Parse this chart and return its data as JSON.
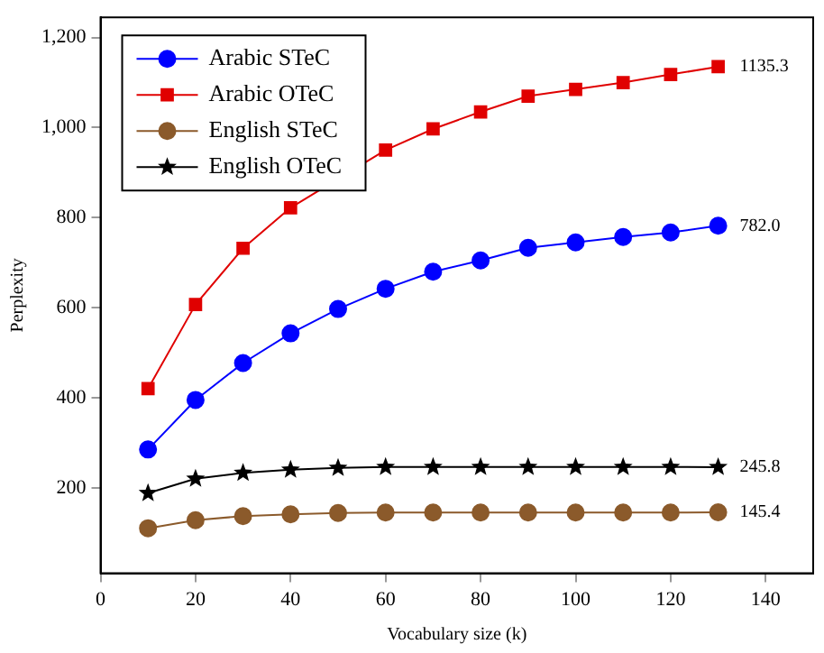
{
  "chart_data": {
    "type": "line",
    "xlabel": "Vocabulary size (k)",
    "ylabel": "Perplexity",
    "x": [
      10,
      20,
      30,
      40,
      50,
      60,
      70,
      80,
      90,
      100,
      110,
      120,
      130
    ],
    "series": [
      {
        "name": "Arabic STeC",
        "color": "#0000ff",
        "marker": "circle",
        "values": [
          285,
          395,
          477,
          543,
          597,
          642,
          680,
          705,
          733,
          745,
          757,
          767,
          782.0
        ],
        "value_labels": [
          null,
          null,
          null,
          null,
          null,
          null,
          null,
          null,
          null,
          null,
          null,
          null,
          "782.0"
        ]
      },
      {
        "name": "Arabic OTeC",
        "color": "#e00000",
        "marker": "square",
        "values": [
          420,
          607,
          732,
          822,
          null,
          950,
          997,
          1035,
          1070,
          1085,
          1100,
          1118,
          1135.3
        ],
        "value_labels": [
          null,
          null,
          null,
          null,
          null,
          null,
          null,
          null,
          null,
          null,
          null,
          null,
          "1135.3"
        ]
      },
      {
        "name": "English STeC",
        "color": "#8b5a2b",
        "marker": "circle",
        "values": [
          110,
          128,
          137,
          141,
          144,
          145,
          145,
          145,
          145,
          145,
          145,
          145,
          145.4
        ],
        "value_labels": [
          null,
          null,
          null,
          null,
          null,
          null,
          null,
          null,
          null,
          null,
          null,
          null,
          "145.4"
        ]
      },
      {
        "name": "English OTeC",
        "color": "#000000",
        "marker": "star",
        "values": [
          188,
          220,
          233,
          240,
          244,
          246,
          246,
          246,
          246,
          246,
          246,
          246,
          245.8
        ],
        "value_labels": [
          null,
          null,
          null,
          null,
          null,
          null,
          null,
          null,
          null,
          null,
          null,
          null,
          "245.8"
        ]
      }
    ],
    "xlim": [
      0,
      150
    ],
    "xticks": [
      0,
      20,
      40,
      60,
      80,
      100,
      120,
      140
    ],
    "ylim": [
      10,
      1245
    ],
    "yticks": [
      200,
      400,
      600,
      800,
      {
        "value": 1000,
        "label": "1,000"
      },
      {
        "value": 1200,
        "label": "1,200"
      }
    ],
    "legend": "top left",
    "grid": false,
    "line_style": "solid"
  }
}
